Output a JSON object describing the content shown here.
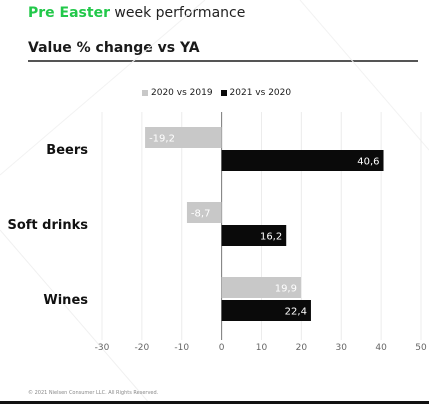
{
  "header": {
    "title_highlight": "Pre Easter",
    "title_rest": " week performance",
    "subtitle": "Value % change vs YA"
  },
  "footer": {
    "copyright": "© 2021 Nielsen Consumer LLC. All Rights Reserved."
  },
  "colors": {
    "highlight": "#22c84a",
    "series_2020": "#c8c8c8",
    "series_2021": "#0a0a0a"
  },
  "chart_data": {
    "type": "bar",
    "orientation": "horizontal",
    "categories": [
      "Beers",
      "Soft drinks",
      "Wines"
    ],
    "series": [
      {
        "name": "2020 vs 2019",
        "values": [
          -19.2,
          -8.7,
          19.9
        ],
        "labels": [
          "-19,2",
          "-8,7",
          "19,9"
        ]
      },
      {
        "name": "2021 vs 2020",
        "values": [
          40.6,
          16.2,
          22.4
        ],
        "labels": [
          "40,6",
          "16,2",
          "22,4"
        ]
      }
    ],
    "xlim": [
      -30,
      50
    ],
    "xticks": [
      -30,
      -20,
      -10,
      0,
      10,
      20,
      30,
      40,
      50
    ],
    "legend_position": "top",
    "grid": true
  }
}
